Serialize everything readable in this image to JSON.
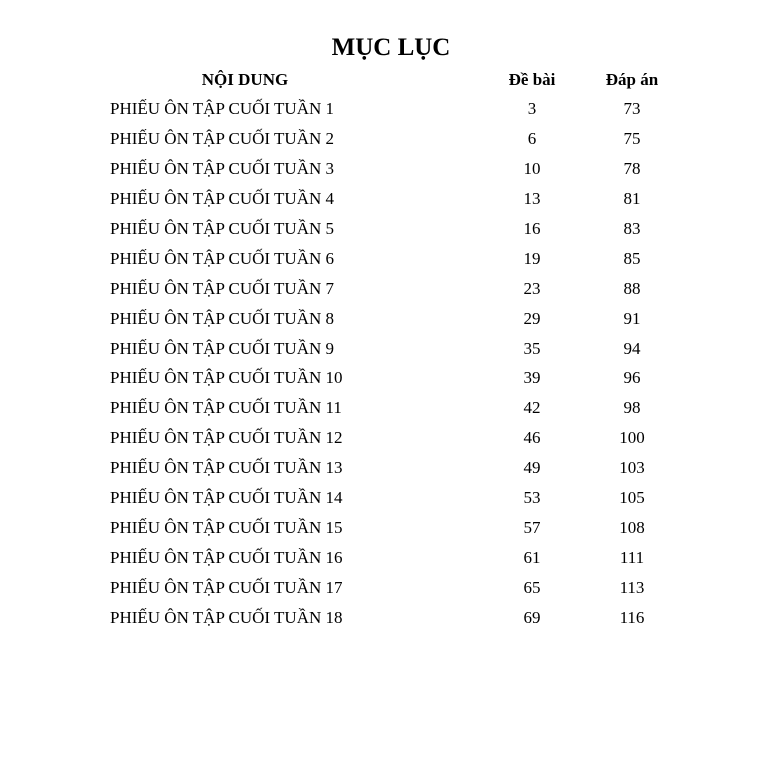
{
  "title": "MỤC LỤC",
  "headers": {
    "content": "NỘI DUNG",
    "exercise": "Đề bài",
    "answer": "Đáp án"
  },
  "rows": [
    {
      "name": "PHIẾU ÔN TẬP CUỐI TUẦN 1",
      "exercise": "3",
      "answer": "73"
    },
    {
      "name": "PHIẾU ÔN TẬP CUỐI TUẦN 2",
      "exercise": "6",
      "answer": "75"
    },
    {
      "name": "PHIẾU ÔN TẬP CUỐI TUẦN 3",
      "exercise": "10",
      "answer": "78"
    },
    {
      "name": "PHIẾU ÔN TẬP CUỐI TUẦN 4",
      "exercise": "13",
      "answer": "81"
    },
    {
      "name": "PHIẾU ÔN TẬP CUỐI TUẦN 5",
      "exercise": "16",
      "answer": "83"
    },
    {
      "name": "PHIẾU ÔN TẬP CUỐI TUẦN 6",
      "exercise": "19",
      "answer": "85"
    },
    {
      "name": "PHIẾU ÔN TẬP CUỐI TUẦN 7",
      "exercise": "23",
      "answer": "88"
    },
    {
      "name": "PHIẾU ÔN TẬP CUỐI TUẦN 8",
      "exercise": "29",
      "answer": "91"
    },
    {
      "name": "PHIẾU ÔN TẬP CUỐI TUẦN 9",
      "exercise": "35",
      "answer": "94"
    },
    {
      "name": "PHIẾU ÔN TẬP CUỐI TUẦN 10",
      "exercise": "39",
      "answer": "96"
    },
    {
      "name": "PHIẾU ÔN TẬP CUỐI TUẦN 11",
      "exercise": "42",
      "answer": "98"
    },
    {
      "name": "PHIẾU ÔN TẬP CUỐI TUẦN 12",
      "exercise": "46",
      "answer": "100"
    },
    {
      "name": "PHIẾU ÔN TẬP CUỐI TUẦN 13",
      "exercise": "49",
      "answer": "103"
    },
    {
      "name": "PHIẾU ÔN TẬP CUỐI TUẦN 14",
      "exercise": "53",
      "answer": "105"
    },
    {
      "name": "PHIẾU ÔN TẬP CUỐI TUẦN 15",
      "exercise": "57",
      "answer": "108"
    },
    {
      "name": "PHIẾU ÔN TẬP CUỐI TUẦN 16",
      "exercise": "61",
      "answer": "111"
    },
    {
      "name": "PHIẾU ÔN TẬP CUỐI TUẦN 17",
      "exercise": "65",
      "answer": "113"
    },
    {
      "name": "PHIẾU ÔN TẬP CUỐI TUẦN 18",
      "exercise": "69",
      "answer": "116"
    }
  ]
}
